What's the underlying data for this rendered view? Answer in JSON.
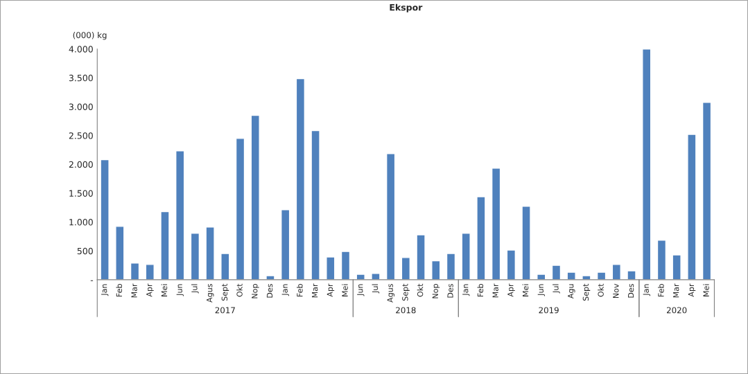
{
  "chart_data": {
    "type": "bar",
    "title": "Ekspor",
    "ylabel": "(000) kg",
    "categories": [
      "Jan",
      "Feb",
      "Mar",
      "Apr",
      "Mei",
      "Jun",
      "Jul",
      "Agus",
      "Sept",
      "Okt",
      "Nop",
      "Des",
      "Jan",
      "Feb",
      "Mar",
      "Apr",
      "Mei",
      "Jun",
      "Jul",
      "Agus",
      "Sept",
      "Okt",
      "Nop",
      "Des",
      "Jan",
      "Feb",
      "Mar",
      "Apr",
      "Mei",
      "Jun",
      "Jul",
      "Agu",
      "Sept",
      "Okt",
      "Nov",
      "Des",
      "Jan",
      "Feb",
      "Mar",
      "Apr",
      "Mei"
    ],
    "values": [
      2080,
      925,
      290,
      265,
      1180,
      2235,
      805,
      915,
      455,
      2450,
      2850,
      70,
      1215,
      3485,
      2585,
      395,
      490,
      95,
      110,
      2185,
      385,
      780,
      330,
      455,
      805,
      1440,
      1935,
      515,
      1275,
      95,
      250,
      130,
      70,
      130,
      265,
      155,
      4000,
      685,
      430,
      2520,
      3075
    ],
    "color": "#4f81bd",
    "ylim": [
      0,
      4000
    ],
    "yticks": [
      {
        "value": 0,
        "label": "-"
      },
      500,
      {
        "value": 1000,
        "label": "1.000"
      },
      {
        "value": 1500,
        "label": "1.500"
      },
      {
        "value": 2000,
        "label": "2.000"
      },
      {
        "value": 2500,
        "label": "2.500"
      },
      {
        "value": 3000,
        "label": "3.000"
      },
      {
        "value": 3500,
        "label": "3.500"
      },
      {
        "value": 4000,
        "label": "4.000"
      }
    ],
    "annotations": [
      "2017",
      "2018",
      "2019",
      "2020"
    ],
    "grid": false,
    "legend": false
  }
}
